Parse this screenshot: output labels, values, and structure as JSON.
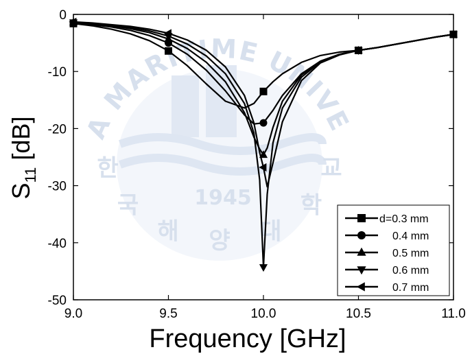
{
  "chart_data": {
    "type": "line",
    "xlabel": "Frequency [GHz]",
    "ylabel_main": "S",
    "ylabel_sub": "11",
    "ylabel_unit": "[dB]",
    "xlim": [
      9.0,
      11.0
    ],
    "ylim": [
      -50,
      0
    ],
    "xticks": [
      "9.0",
      "9.5",
      "10.0",
      "10.5",
      "11.0"
    ],
    "yticks": [
      "0",
      "-10",
      "-20",
      "-30",
      "-40",
      "-50"
    ],
    "legend_position": "bottom-right",
    "series": [
      {
        "name": "d=0.3 mm",
        "marker": "square",
        "x": [
          9.0,
          9.1,
          9.2,
          9.3,
          9.4,
          9.5,
          9.6,
          9.7,
          9.8,
          9.9,
          9.95,
          10.0,
          10.05,
          10.1,
          10.2,
          10.3,
          10.4,
          10.5,
          10.6,
          10.7,
          10.8,
          10.9,
          11.0
        ],
        "y": [
          -1.6,
          -2.0,
          -2.6,
          -3.4,
          -4.6,
          -6.4,
          -9.0,
          -12.2,
          -15.2,
          -16.4,
          -15.6,
          -13.5,
          -11.8,
          -10.4,
          -8.4,
          -7.2,
          -6.6,
          -6.3,
          -5.8,
          -5.2,
          -4.6,
          -4.0,
          -3.5
        ],
        "marker_x": [
          9.0,
          9.5,
          10.0,
          10.5,
          11.0
        ]
      },
      {
        "name": "0.4 mm",
        "marker": "circle",
        "x": [
          9.0,
          9.1,
          9.2,
          9.3,
          9.4,
          9.5,
          9.6,
          9.7,
          9.8,
          9.9,
          9.95,
          10.0,
          10.05,
          10.1,
          10.2,
          10.3,
          10.4,
          10.5,
          10.6,
          10.7,
          10.8,
          10.9,
          11.0
        ],
        "y": [
          -1.5,
          -1.8,
          -2.2,
          -2.8,
          -3.7,
          -5.0,
          -7.0,
          -9.8,
          -13.4,
          -17.6,
          -19.2,
          -19.0,
          -16.8,
          -14.2,
          -10.4,
          -8.2,
          -7.0,
          -6.3,
          -5.8,
          -5.2,
          -4.6,
          -4.0,
          -3.5
        ],
        "marker_x": [
          9.0,
          9.5,
          10.0,
          10.5,
          11.0
        ]
      },
      {
        "name": "0.5 mm",
        "marker": "triangle-up",
        "x": [
          9.0,
          9.1,
          9.2,
          9.3,
          9.4,
          9.5,
          9.6,
          9.7,
          9.8,
          9.9,
          9.95,
          9.98,
          10.0,
          10.02,
          10.05,
          10.1,
          10.2,
          10.3,
          10.4,
          10.5,
          10.6,
          10.7,
          10.8,
          10.9,
          11.0
        ],
        "y": [
          -1.4,
          -1.7,
          -2.0,
          -2.5,
          -3.2,
          -4.3,
          -6.0,
          -8.4,
          -11.8,
          -17.2,
          -21.5,
          -23.6,
          -24.6,
          -23.4,
          -19.8,
          -15.2,
          -10.6,
          -8.2,
          -7.0,
          -6.3,
          -5.8,
          -5.2,
          -4.6,
          -4.0,
          -3.5
        ],
        "marker_x": [
          9.0,
          9.5,
          10.0,
          10.5,
          11.0
        ]
      },
      {
        "name": "0.6 mm",
        "marker": "triangle-down",
        "x": [
          9.0,
          9.1,
          9.2,
          9.3,
          9.4,
          9.5,
          9.6,
          9.7,
          9.8,
          9.9,
          9.95,
          9.98,
          10.0,
          10.02,
          10.05,
          10.1,
          10.2,
          10.3,
          10.4,
          10.5,
          10.6,
          10.7,
          10.8,
          10.9,
          11.0
        ],
        "y": [
          -1.4,
          -1.6,
          -1.9,
          -2.3,
          -2.9,
          -3.8,
          -5.2,
          -7.3,
          -10.4,
          -15.6,
          -20.8,
          -29.0,
          -44.3,
          -31.5,
          -22.5,
          -16.4,
          -11.0,
          -8.3,
          -7.0,
          -6.3,
          -5.8,
          -5.2,
          -4.6,
          -4.0,
          -3.5
        ],
        "marker_x": [
          9.0,
          9.5,
          10.0,
          10.5,
          11.0
        ]
      },
      {
        "name": "0.7 mm",
        "marker": "triangle-left",
        "x": [
          9.0,
          9.1,
          9.2,
          9.3,
          9.4,
          9.5,
          9.6,
          9.7,
          9.8,
          9.9,
          9.95,
          9.98,
          10.0,
          10.02,
          10.05,
          10.1,
          10.2,
          10.3,
          10.4,
          10.5,
          10.6,
          10.7,
          10.8,
          10.9,
          11.0
        ],
        "y": [
          -1.3,
          -1.5,
          -1.8,
          -2.1,
          -2.6,
          -3.3,
          -4.5,
          -6.3,
          -9.2,
          -14.2,
          -19.0,
          -24.2,
          -26.8,
          -30.2,
          -26.0,
          -18.8,
          -11.6,
          -8.5,
          -7.1,
          -6.3,
          -5.8,
          -5.2,
          -4.6,
          -4.0,
          -3.5
        ],
        "marker_x": [
          9.0,
          9.5,
          10.0,
          10.5,
          11.0
        ]
      }
    ],
    "watermark": {
      "arc_text": "KOREA MARITIME UNIVERSITY",
      "year": "1945",
      "korean": [
        "한",
        "국",
        "해",
        "양",
        "대",
        "학",
        "교"
      ]
    }
  }
}
